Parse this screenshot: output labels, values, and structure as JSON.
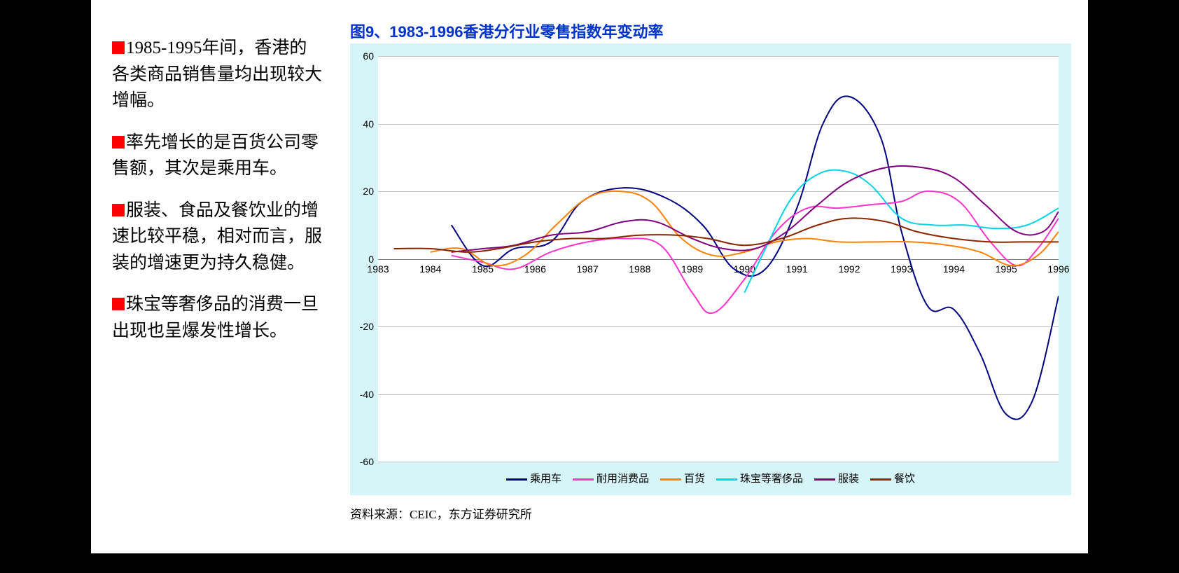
{
  "left_text": {
    "blocks": [
      "1985-1995年间，香港的各类商品销售量均出现较大增幅。",
      "率先增长的是百货公司零售额，其次是乘用车。",
      "服装、食品及餐饮业的增速比较平稳，相对而言，服装的增速更为持久稳健。",
      "珠宝等奢侈品的消费一旦出现也呈爆发性增长。"
    ]
  },
  "chart": {
    "title": "图9、1983-1996香港分行业零售指数年变动率",
    "type": "line",
    "background_color": "#d6f5f8",
    "plot_background": "#ffffff",
    "grid_color": "#c0c0c0",
    "axis_color": "#808080",
    "line_width": 2.0,
    "tick_fontsize": 14,
    "x_years": [
      1983,
      1984,
      1985,
      1986,
      1987,
      1988,
      1989,
      1990,
      1991,
      1992,
      1993,
      1994,
      1995,
      1996
    ],
    "xlim": [
      1983,
      1996
    ],
    "ylim": [
      -60,
      60
    ],
    "ytick_step": 20,
    "series": [
      {
        "name": "乘用车",
        "color": "#000080",
        "points": [
          [
            1984.4,
            10
          ],
          [
            1985.0,
            -2
          ],
          [
            1985.6,
            3
          ],
          [
            1986.3,
            5
          ],
          [
            1986.9,
            17
          ],
          [
            1987.7,
            21
          ],
          [
            1988.5,
            18
          ],
          [
            1989.2,
            10
          ],
          [
            1989.8,
            -3
          ],
          [
            1990.4,
            -3
          ],
          [
            1991.0,
            15
          ],
          [
            1991.5,
            40
          ],
          [
            1992.0,
            48
          ],
          [
            1992.6,
            36
          ],
          [
            1993.0,
            8
          ],
          [
            1993.5,
            -14
          ],
          [
            1994.0,
            -15
          ],
          [
            1994.5,
            -28
          ],
          [
            1995.0,
            -46
          ],
          [
            1995.5,
            -42
          ],
          [
            1996.0,
            -11
          ]
        ]
      },
      {
        "name": "耐用消费品",
        "color": "#ff33cc",
        "points": [
          [
            1984.4,
            1
          ],
          [
            1985.0,
            -1
          ],
          [
            1985.6,
            -3
          ],
          [
            1986.3,
            2
          ],
          [
            1987.0,
            5
          ],
          [
            1987.7,
            6
          ],
          [
            1988.4,
            4
          ],
          [
            1989.0,
            -10
          ],
          [
            1989.4,
            -16
          ],
          [
            1990.0,
            -6
          ],
          [
            1990.6,
            8
          ],
          [
            1991.2,
            15
          ],
          [
            1991.8,
            15
          ],
          [
            1992.4,
            16
          ],
          [
            1993.0,
            17
          ],
          [
            1993.5,
            20
          ],
          [
            1994.1,
            17
          ],
          [
            1994.7,
            5
          ],
          [
            1995.2,
            -2
          ],
          [
            1995.6,
            3
          ],
          [
            1996.0,
            12
          ]
        ]
      },
      {
        "name": "百货",
        "color": "#ff8000",
        "points": [
          [
            1984.0,
            2
          ],
          [
            1984.6,
            3
          ],
          [
            1985.2,
            -2
          ],
          [
            1985.8,
            1
          ],
          [
            1986.4,
            10
          ],
          [
            1987.0,
            18
          ],
          [
            1987.6,
            20
          ],
          [
            1988.2,
            17
          ],
          [
            1988.8,
            6
          ],
          [
            1989.4,
            1
          ],
          [
            1990.0,
            2
          ],
          [
            1990.6,
            5
          ],
          [
            1991.2,
            6
          ],
          [
            1991.8,
            5
          ],
          [
            1992.5,
            5
          ],
          [
            1993.2,
            5
          ],
          [
            1993.9,
            4
          ],
          [
            1994.5,
            2
          ],
          [
            1995.1,
            -2
          ],
          [
            1995.6,
            1
          ],
          [
            1996.0,
            8
          ]
        ]
      },
      {
        "name": "珠宝等奢侈品",
        "color": "#00d4e6",
        "points": [
          [
            1990.0,
            -10
          ],
          [
            1990.4,
            3
          ],
          [
            1990.9,
            18
          ],
          [
            1991.4,
            25
          ],
          [
            1991.9,
            26
          ],
          [
            1992.4,
            22
          ],
          [
            1993.0,
            12
          ],
          [
            1993.6,
            10
          ],
          [
            1994.2,
            10
          ],
          [
            1994.8,
            9
          ],
          [
            1995.4,
            10
          ],
          [
            1996.0,
            15
          ]
        ]
      },
      {
        "name": "服装",
        "color": "#800080",
        "points": [
          [
            1984.4,
            2
          ],
          [
            1985.0,
            3
          ],
          [
            1985.6,
            4
          ],
          [
            1986.3,
            7
          ],
          [
            1987.0,
            8
          ],
          [
            1987.7,
            11
          ],
          [
            1988.3,
            11
          ],
          [
            1989.0,
            6
          ],
          [
            1989.6,
            3
          ],
          [
            1990.2,
            3
          ],
          [
            1990.8,
            8
          ],
          [
            1991.4,
            16
          ],
          [
            1992.0,
            23
          ],
          [
            1992.7,
            27
          ],
          [
            1993.4,
            27
          ],
          [
            1994.0,
            24
          ],
          [
            1994.6,
            16
          ],
          [
            1995.2,
            8
          ],
          [
            1995.7,
            8
          ],
          [
            1996.0,
            14
          ]
        ]
      },
      {
        "name": "餐饮",
        "color": "#8b2500",
        "points": [
          [
            1983.3,
            3
          ],
          [
            1984.0,
            3
          ],
          [
            1984.7,
            2
          ],
          [
            1985.3,
            3
          ],
          [
            1986.0,
            5
          ],
          [
            1986.7,
            6
          ],
          [
            1987.3,
            6
          ],
          [
            1988.0,
            7
          ],
          [
            1988.7,
            7
          ],
          [
            1989.3,
            6
          ],
          [
            1990.0,
            4
          ],
          [
            1990.7,
            6
          ],
          [
            1991.4,
            10
          ],
          [
            1992.0,
            12
          ],
          [
            1992.7,
            11
          ],
          [
            1993.3,
            8
          ],
          [
            1994.0,
            6
          ],
          [
            1994.7,
            5
          ],
          [
            1995.3,
            5
          ],
          [
            1996.0,
            5
          ]
        ]
      }
    ]
  },
  "source_label": "资料来源：CEIC，东方证券研究所"
}
